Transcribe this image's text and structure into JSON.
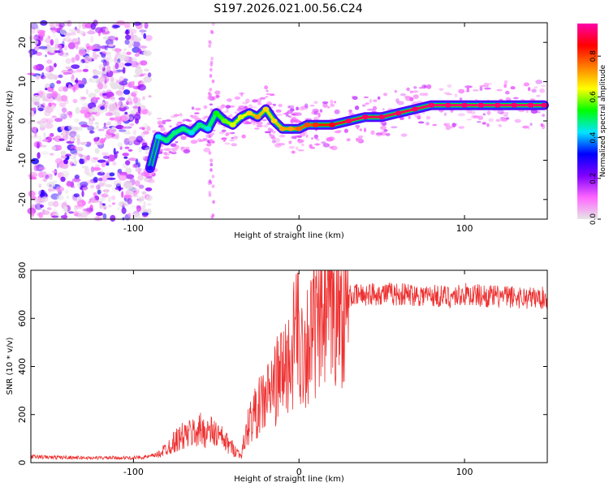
{
  "chart_data": [
    {
      "type": "heatmap",
      "title": "S197.2026.021.00.56.C24",
      "xlabel": "Height of straight line (km)",
      "ylabel": "Frequency (Hz)",
      "xlim": [
        -162,
        150
      ],
      "ylim": [
        -25,
        25
      ],
      "x_ticks": [
        -100,
        0,
        100
      ],
      "y_ticks": [
        -20,
        -10,
        0,
        10,
        20
      ],
      "colorbar": {
        "label": "Normalized spectral amplitude",
        "range": [
          0,
          0.96
        ],
        "ticks": [
          0.0,
          0.2,
          0.4,
          0.6,
          0.8
        ],
        "colors": [
          "#e6e6e6",
          "#ff66ff",
          "#7f00ff",
          "#0000ff",
          "#00e5ff",
          "#00ff00",
          "#ffff00",
          "#ff7f00",
          "#ff0000",
          "#ff00aa"
        ]
      },
      "ridge": {
        "x": [
          -90,
          -85,
          -80,
          -75,
          -70,
          -65,
          -60,
          -55,
          -50,
          -45,
          -40,
          -35,
          -30,
          -25,
          -20,
          -15,
          -10,
          -5,
          0,
          5,
          10,
          20,
          30,
          40,
          50,
          60,
          70,
          80,
          90,
          100,
          110,
          120,
          130,
          140,
          148
        ],
        "freq": [
          -12,
          -4,
          -5,
          -3,
          -2,
          -3,
          -1,
          -2,
          2,
          0,
          -1,
          1,
          2,
          1,
          3,
          0,
          -2,
          -2,
          -2,
          -1,
          -1,
          -1,
          0,
          1,
          1,
          2,
          3,
          4,
          4,
          4,
          4,
          4,
          4,
          4,
          4
        ],
        "amp": [
          0.3,
          0.45,
          0.5,
          0.5,
          0.5,
          0.45,
          0.5,
          0.45,
          0.55,
          0.6,
          0.65,
          0.65,
          0.7,
          0.75,
          0.7,
          0.7,
          0.75,
          0.75,
          0.8,
          0.82,
          0.85,
          0.9,
          0.95,
          0.95,
          0.95,
          0.95,
          0.95,
          0.96,
          0.96,
          0.96,
          0.96,
          0.96,
          0.96,
          0.96,
          0.96
        ]
      },
      "noise_region_x": [
        -162,
        -90
      ]
    },
    {
      "type": "line",
      "xlabel": "Height of straight line (km)",
      "ylabel": "SNR (10 * v/v)",
      "xlim": [
        -162,
        150
      ],
      "ylim": [
        0,
        800
      ],
      "x_ticks": [
        -100,
        0,
        100
      ],
      "y_ticks": [
        0,
        200,
        400,
        600,
        800
      ],
      "series": [
        {
          "name": "SNR",
          "color": "#ee3030",
          "x": [
            -162,
            -150,
            -140,
            -130,
            -120,
            -110,
            -100,
            -90,
            -85,
            -80,
            -75,
            -70,
            -65,
            -60,
            -55,
            -50,
            -45,
            -40,
            -35,
            -30,
            -25,
            -20,
            -15,
            -10,
            -5,
            -2,
            0,
            5,
            10,
            15,
            20,
            25,
            30,
            40,
            50,
            60,
            70,
            80,
            90,
            100,
            110,
            120,
            130,
            140,
            150
          ],
          "values": [
            25,
            22,
            22,
            20,
            20,
            20,
            20,
            25,
            35,
            60,
            90,
            110,
            120,
            135,
            130,
            120,
            90,
            60,
            30,
            170,
            220,
            270,
            320,
            380,
            430,
            520,
            460,
            500,
            560,
            610,
            640,
            670,
            690,
            700,
            705,
            700,
            700,
            695,
            690,
            700,
            695,
            690,
            690,
            685,
            685
          ]
        }
      ]
    }
  ]
}
